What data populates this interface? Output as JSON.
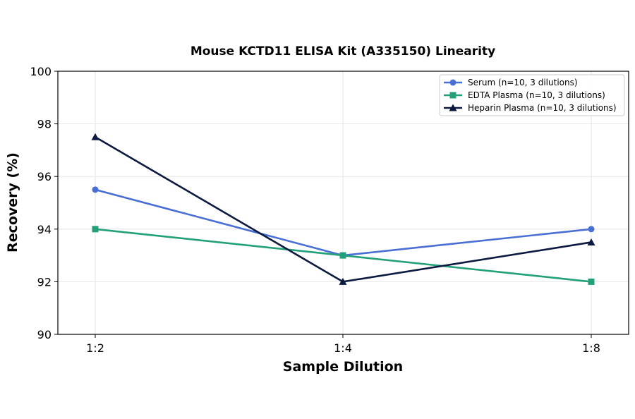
{
  "chart_data": {
    "type": "line",
    "title": "Mouse KCTD11 ELISA Kit (A335150) Linearity",
    "xlabel": "Sample Dilution",
    "ylabel": "Recovery (%)",
    "categories": [
      "1:2",
      "1:4",
      "1:8"
    ],
    "ylim": [
      90,
      100
    ],
    "yticks": [
      90,
      92,
      94,
      96,
      98,
      100
    ],
    "grid": true,
    "legend_position": "top-right",
    "series": [
      {
        "name": "Serum (n=10, 3 dilutions)",
        "values": [
          95.5,
          93.0,
          94.0
        ],
        "color": "#4a6fd4",
        "marker": "circle"
      },
      {
        "name": "EDTA Plasma (n=10, 3 dilutions)",
        "values": [
          94.0,
          93.0,
          92.0
        ],
        "color": "#22a07a",
        "marker": "square"
      },
      {
        "name": "Heparin Plasma (n=10, 3 dilutions)",
        "values": [
          97.5,
          92.0,
          93.5
        ],
        "color": "#0d1a40",
        "marker": "triangle"
      }
    ]
  }
}
